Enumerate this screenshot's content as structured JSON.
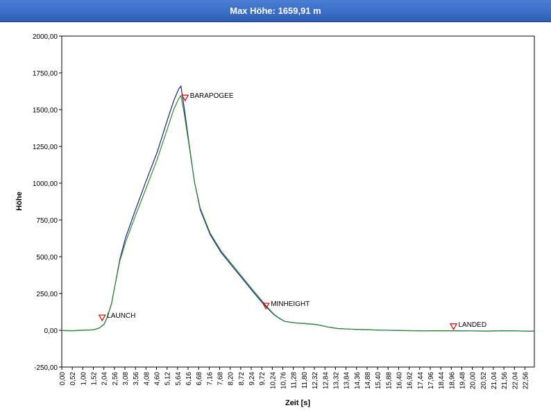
{
  "window": {
    "title": "Max Höhe: 1659,91 m"
  },
  "chart_data": {
    "type": "line",
    "xlabel": "Zeit [s]",
    "ylabel": "Höhe",
    "xlim": [
      0,
      22.8
    ],
    "ylim": [
      -250,
      2000
    ],
    "y_ticks": [
      -250,
      0,
      250,
      500,
      750,
      1000,
      1250,
      1500,
      1750,
      2000
    ],
    "y_tick_labels": [
      "-250,00",
      "0,00",
      "250,00",
      "500,00",
      "750,00",
      "1000,00",
      "1250,00",
      "1500,00",
      "1750,00",
      "2000,00"
    ],
    "x_tick_labels": [
      "0,00",
      "0,52",
      "1,00",
      "1,52",
      "2,04",
      "2,56",
      "3,08",
      "3,56",
      "4,08",
      "4,60",
      "5,12",
      "5,64",
      "6,16",
      "6,68",
      "7,16",
      "7,68",
      "8,20",
      "8,72",
      "9,24",
      "9,72",
      "10,24",
      "10,76",
      "11,28",
      "11,80",
      "12,32",
      "12,84",
      "13,32",
      "13,84",
      "14,36",
      "14,88",
      "15,40",
      "15,88",
      "16,40",
      "16,92",
      "17,44",
      "17,96",
      "18,44",
      "18,96",
      "19,48",
      "20,00",
      "20,52",
      "21,04",
      "21,56",
      "22,04",
      "22,56"
    ],
    "grid": false,
    "legend": "none",
    "series": [
      {
        "color": "#1c1c8c",
        "x": [
          0,
          0.52,
          1.0,
          1.52,
          1.8,
          2.04,
          2.2,
          2.4,
          2.56,
          2.8,
          3.08,
          3.56,
          4.08,
          4.6,
          5.12,
          5.4,
          5.64,
          5.75,
          5.9,
          6.16,
          6.4,
          6.68,
          7.16,
          7.68,
          8.2,
          8.72,
          9.24,
          9.72,
          10.0,
          10.24,
          10.5,
          10.76,
          11.28,
          11.8,
          12.32,
          12.84,
          13.32,
          13.84,
          14.36,
          14.88,
          15.4,
          16.4,
          17.44,
          18.44,
          19.48,
          20.52,
          21.56,
          22.56,
          22.8
        ],
        "y": [
          -2,
          -3,
          0,
          3,
          15,
          40,
          90,
          180,
          300,
          480,
          630,
          820,
          1020,
          1210,
          1440,
          1560,
          1640,
          1660,
          1520,
          1250,
          1010,
          820,
          650,
          530,
          440,
          350,
          260,
          180,
          140,
          105,
          80,
          60,
          50,
          45,
          38,
          22,
          12,
          8,
          5,
          3,
          1,
          -2,
          -4,
          -3,
          -4,
          -5,
          -3,
          -6,
          -5
        ]
      },
      {
        "color": "#2f8a2f",
        "x": [
          0,
          0.52,
          1.0,
          1.52,
          1.8,
          2.04,
          2.2,
          2.4,
          2.56,
          2.8,
          3.08,
          3.56,
          4.08,
          4.6,
          5.12,
          5.4,
          5.64,
          5.75,
          5.9,
          6.16,
          6.4,
          6.68,
          7.16,
          7.68,
          8.2,
          8.72,
          9.24,
          9.72,
          10.0,
          10.24,
          10.5,
          10.76,
          11.28,
          11.8,
          12.32,
          12.84,
          13.32,
          13.84,
          14.36,
          14.88,
          15.4,
          16.4,
          17.44,
          18.44,
          19.48,
          20.52,
          21.56,
          22.56,
          22.8
        ],
        "y": [
          -2,
          -3,
          0,
          3,
          15,
          40,
          90,
          180,
          300,
          470,
          600,
          780,
          970,
          1160,
          1380,
          1500,
          1575,
          1595,
          1480,
          1240,
          1010,
          830,
          660,
          540,
          450,
          360,
          270,
          190,
          145,
          108,
          82,
          60,
          50,
          45,
          38,
          22,
          12,
          8,
          5,
          3,
          1,
          -2,
          -4,
          -3,
          -4,
          -5,
          -3,
          -6,
          -5
        ]
      }
    ],
    "annotations": [
      {
        "label": "LAUNCH",
        "x": 1.95,
        "y": 80
      },
      {
        "label": "BARAPOGEE",
        "x": 5.95,
        "y": 1575
      },
      {
        "label": "MINHEIGHT",
        "x": 9.85,
        "y": 160
      },
      {
        "label": "LANDED",
        "x": 18.9,
        "y": 20
      }
    ]
  }
}
